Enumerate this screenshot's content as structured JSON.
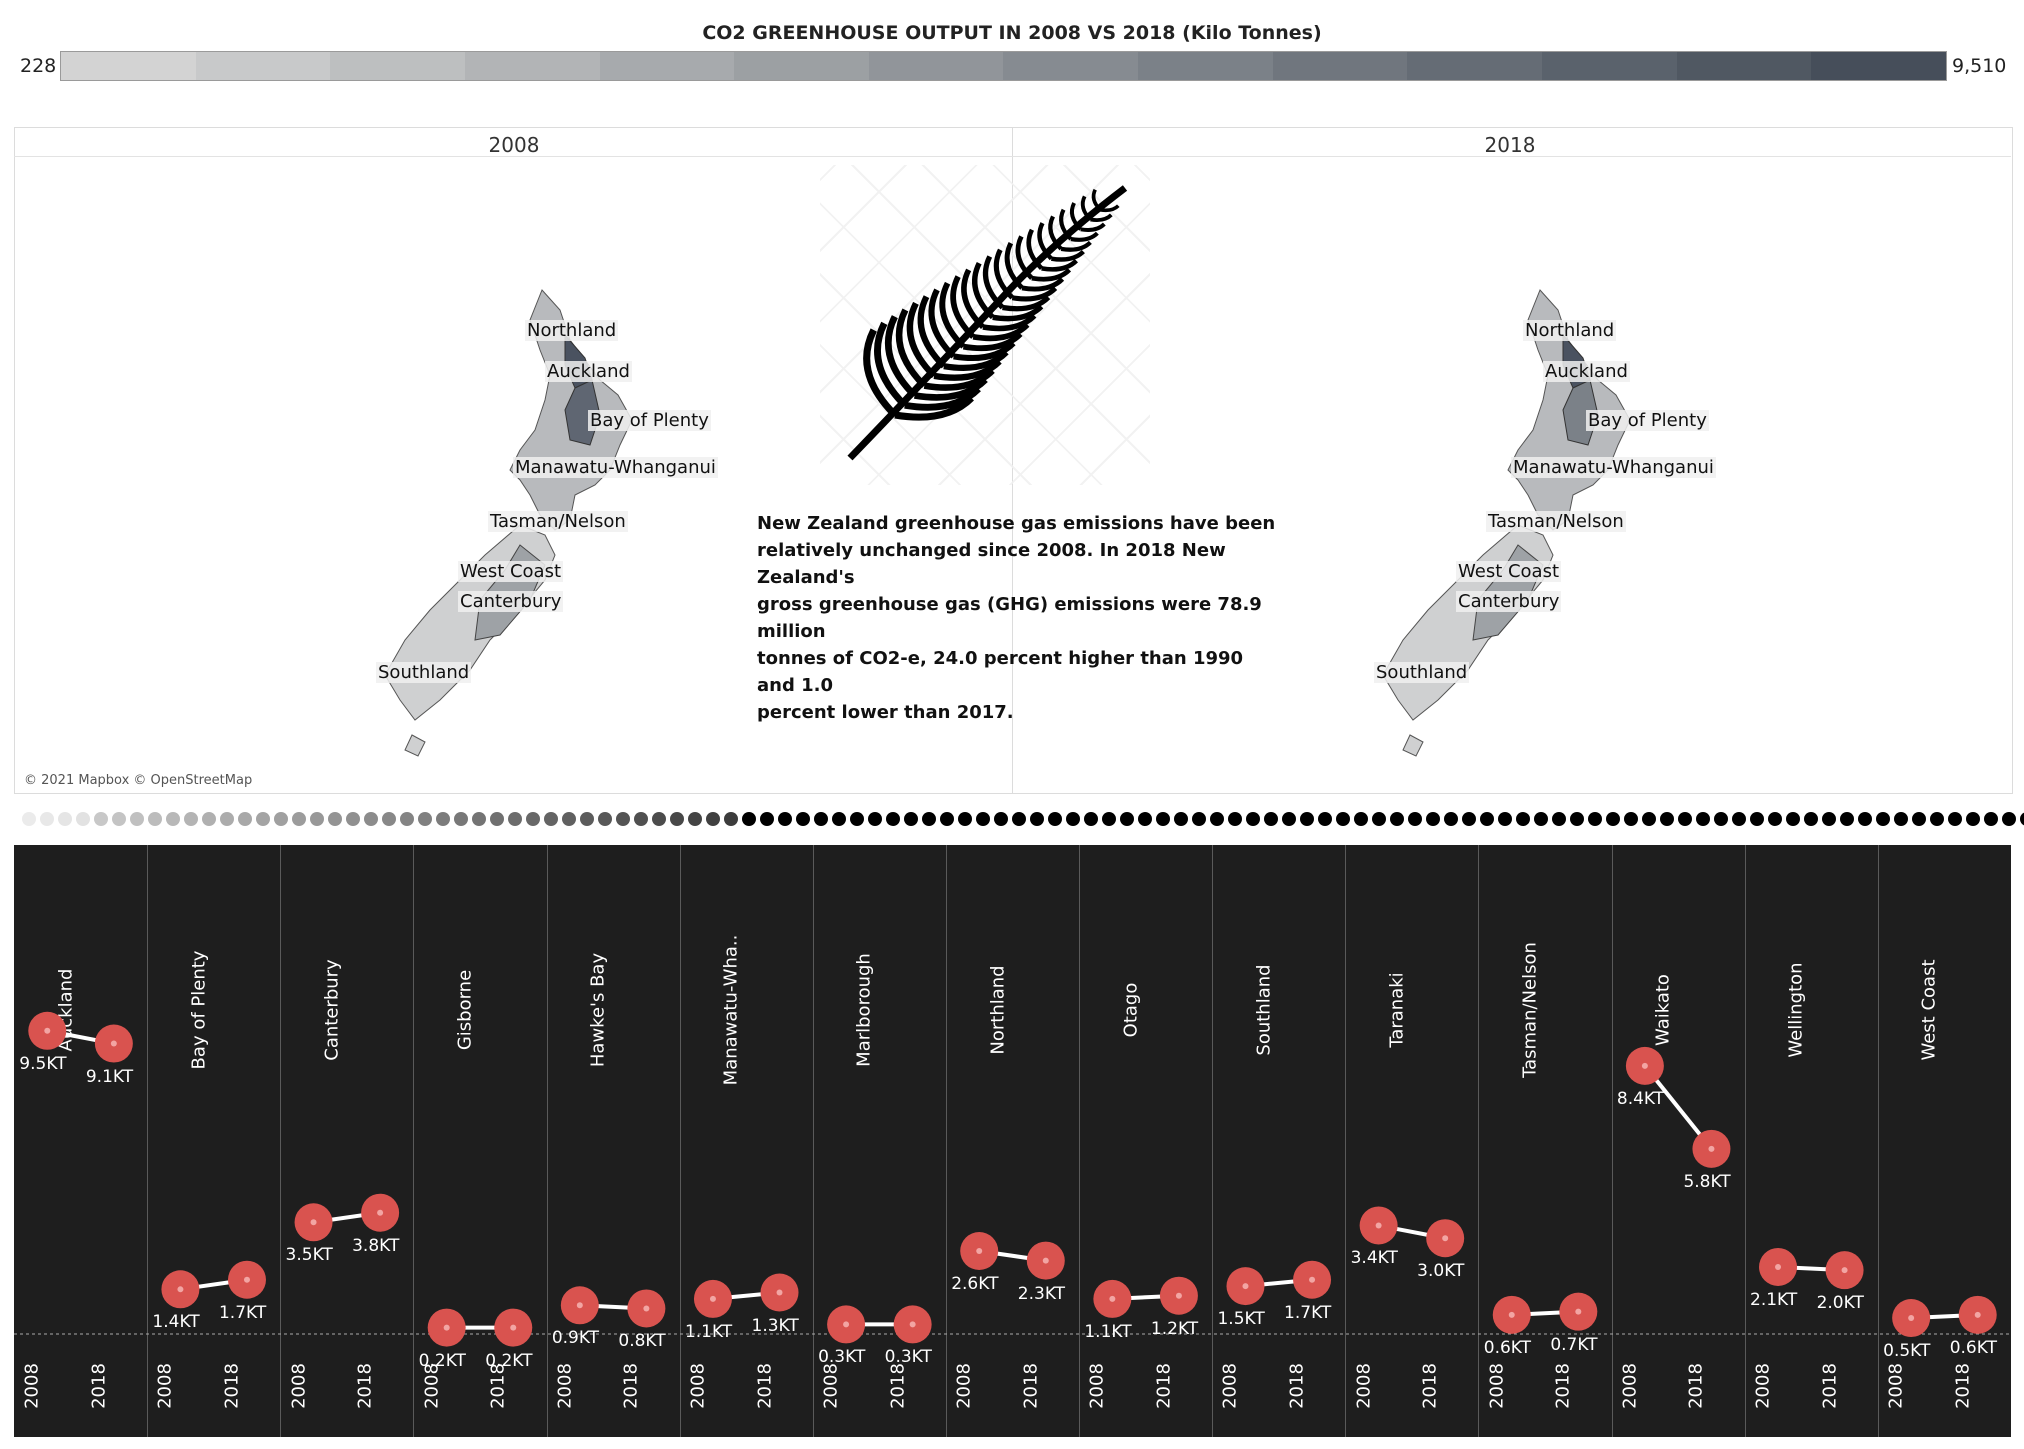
{
  "title": "CO2  GREENHOUSE OUTPUT IN  2008 VS 2018 (Kilo Tonnes)",
  "legend": {
    "min_label": "228",
    "max_label": "9,510",
    "steps": [
      "#d3d3d3",
      "#c8c9ca",
      "#bdbfc0",
      "#b2b4b6",
      "#a7aaad",
      "#9ca0a3",
      "#91959a",
      "#868b91",
      "#7b8188",
      "#70767e",
      "#656c75",
      "#5a626c",
      "#505862",
      "#464e5a"
    ]
  },
  "maps": {
    "year_2008": "2008",
    "year_2018": "2018",
    "labels": [
      "Northland",
      "Auckland",
      "Bay of Plenty",
      "Manawatu-Whanganui",
      "Tasman/Nelson",
      "West Coast",
      "Canterbury",
      "Southland"
    ],
    "credit": "© 2021 Mapbox © OpenStreetMap"
  },
  "narrative": {
    "lines": [
      "New Zealand greenhouse gas emissions have been",
      "relatively unchanged since 2008. In 2018 New Zealand's",
      "gross greenhouse gas (GHG) emissions were 78.9 million",
      "tonnes of CO2-e, 24.0 percent higher than 1990 and 1.0",
      "percent lower than 2017."
    ]
  },
  "slope_chart": {
    "year_labels": [
      "2008",
      "2018"
    ],
    "dot_color": "#d9534f",
    "line_color": "#ffffff",
    "panel_bg": "#1e1e1e"
  },
  "chart_data": {
    "type": "line",
    "title": "",
    "x": [
      "2008",
      "2018"
    ],
    "ylabel": "",
    "series": [
      {
        "name": "Auckland",
        "values": [
          9.5,
          9.1
        ],
        "labels": [
          "9.5KT",
          "9.1KT"
        ]
      },
      {
        "name": "Bay of Plenty",
        "values": [
          1.4,
          1.7
        ],
        "labels": [
          "1.4KT",
          "1.7KT"
        ]
      },
      {
        "name": "Canterbury",
        "values": [
          3.5,
          3.8
        ],
        "labels": [
          "3.5KT",
          "3.8KT"
        ]
      },
      {
        "name": "Gisborne",
        "values": [
          0.2,
          0.2
        ],
        "labels": [
          "0.2KT",
          "0.2KT"
        ]
      },
      {
        "name": "Hawke's Bay",
        "values": [
          0.9,
          0.8
        ],
        "labels": [
          "0.9KT",
          "0.8KT"
        ]
      },
      {
        "name": "Manawatu-Wha..",
        "values": [
          1.1,
          1.3
        ],
        "labels": [
          "1.1KT",
          "1.3KT"
        ]
      },
      {
        "name": "Marlborough",
        "values": [
          0.3,
          0.3
        ],
        "labels": [
          "0.3KT",
          "0.3KT"
        ]
      },
      {
        "name": "Northland",
        "values": [
          2.6,
          2.3
        ],
        "labels": [
          "2.6KT",
          "2.3KT"
        ]
      },
      {
        "name": "Otago",
        "values": [
          1.1,
          1.2
        ],
        "labels": [
          "1.1KT",
          "1.2KT"
        ]
      },
      {
        "name": "Southland",
        "values": [
          1.5,
          1.7
        ],
        "labels": [
          "1.5KT",
          "1.7KT"
        ]
      },
      {
        "name": "Taranaki",
        "values": [
          3.4,
          3.0
        ],
        "labels": [
          "3.4KT",
          "3.0KT"
        ]
      },
      {
        "name": "Tasman/Nelson",
        "values": [
          0.6,
          0.7
        ],
        "labels": [
          "0.6KT",
          "0.7KT"
        ]
      },
      {
        "name": "Waikato",
        "values": [
          8.4,
          5.8
        ],
        "labels": [
          "8.4KT",
          "5.8KT"
        ]
      },
      {
        "name": "Wellington",
        "values": [
          2.1,
          2.0
        ],
        "labels": [
          "2.1KT",
          "2.0KT"
        ]
      },
      {
        "name": "West Coast",
        "values": [
          0.5,
          0.6
        ],
        "labels": [
          "0.5KT",
          "0.6KT"
        ]
      }
    ],
    "ylim": [
      0,
      10
    ]
  }
}
